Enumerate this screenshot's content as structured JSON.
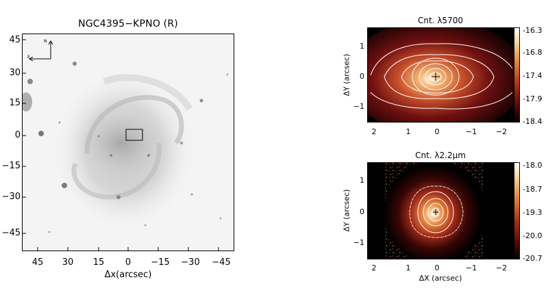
{
  "left_panel": {
    "title": "NGC4395−KPNO (R)",
    "xlabel": "Δx(arcsec)",
    "x_ticks": [
      "45",
      "30",
      "15",
      "0",
      "−15",
      "−30",
      "−45"
    ],
    "y_ticks": [
      "45",
      "30",
      "15",
      "0",
      "−15",
      "−30",
      "−45"
    ],
    "compass_n": "N",
    "compass_e": "E"
  },
  "top_right": {
    "title": "Cnt. λ5700",
    "ylabel": "ΔY (arcsec)",
    "x_ticks": [
      "2",
      "1",
      "0",
      "−1",
      "−2"
    ],
    "y_ticks": [
      "1",
      "0",
      "−1"
    ],
    "colorbar_ticks": [
      "-16.3",
      "-16.8",
      "-17.4",
      "-17.9",
      "-18.4"
    ]
  },
  "bottom_right": {
    "title": "Cnt. λ2.2μm",
    "xlabel": "ΔX (arcsec)",
    "ylabel": "ΔY (arcsec)",
    "x_ticks": [
      "2",
      "1",
      "0",
      "−1",
      "−2"
    ],
    "y_ticks": [
      "1",
      "0",
      "−1"
    ],
    "colorbar_ticks": [
      "-18.0",
      "-18.7",
      "-19.3",
      "-20.0",
      "-20.7"
    ]
  },
  "colors": {
    "map_dark": "#000000",
    "map_mid": "#a0281e",
    "map_bright": "#f0a060",
    "contour": "#ffffff"
  }
}
